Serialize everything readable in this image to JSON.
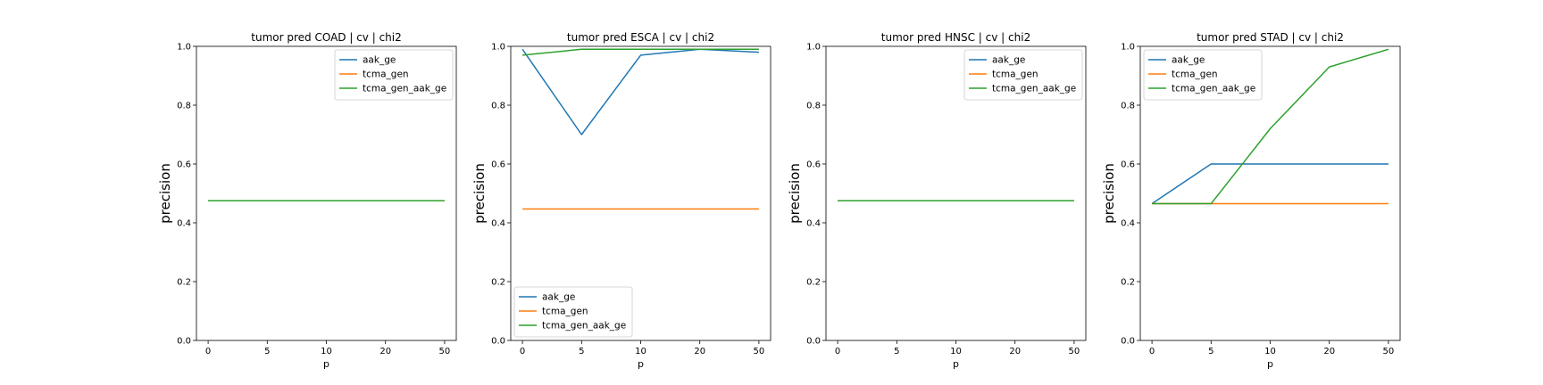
{
  "colors": {
    "aak_ge": "#1f77b4",
    "tcma_gen": "#ff7f0e",
    "tcma_gen_aak_ge": "#2ca02c"
  },
  "chart_data": [
    {
      "type": "line",
      "title": "tumor pred COAD | cv | chi2",
      "xlabel": "p",
      "ylabel": "precision",
      "ylim": [
        0.0,
        1.0
      ],
      "yticks": [
        "0.0",
        "0.2",
        "0.4",
        "0.6",
        "0.8",
        "1.0"
      ],
      "categories": [
        "0",
        "5",
        "10",
        "20",
        "50"
      ],
      "legend_position": "upper-right",
      "grid": false,
      "series": [
        {
          "name": "aak_ge",
          "color_key": "aak_ge",
          "values": [
            0.475,
            0.475,
            0.475,
            0.475,
            0.475
          ]
        },
        {
          "name": "tcma_gen",
          "color_key": "tcma_gen",
          "values": [
            0.475,
            0.475,
            0.475,
            0.475,
            0.475
          ]
        },
        {
          "name": "tcma_gen_aak_ge",
          "color_key": "tcma_gen_aak_ge",
          "values": [
            0.475,
            0.475,
            0.475,
            0.475,
            0.475
          ]
        }
      ]
    },
    {
      "type": "line",
      "title": "tumor pred ESCA | cv | chi2",
      "xlabel": "p",
      "ylabel": "precision",
      "ylim": [
        0.0,
        1.0
      ],
      "yticks": [
        "0.0",
        "0.2",
        "0.4",
        "0.6",
        "0.8",
        "1.0"
      ],
      "categories": [
        "0",
        "5",
        "10",
        "20",
        "50"
      ],
      "legend_position": "lower-left",
      "grid": false,
      "series": [
        {
          "name": "aak_ge",
          "color_key": "aak_ge",
          "values": [
            0.99,
            0.7,
            0.97,
            0.99,
            0.98
          ]
        },
        {
          "name": "tcma_gen",
          "color_key": "tcma_gen",
          "values": [
            0.447,
            0.447,
            0.447,
            0.447,
            0.447
          ]
        },
        {
          "name": "tcma_gen_aak_ge",
          "color_key": "tcma_gen_aak_ge",
          "values": [
            0.97,
            0.99,
            0.99,
            0.99,
            0.99
          ]
        }
      ]
    },
    {
      "type": "line",
      "title": "tumor pred HNSC | cv | chi2",
      "xlabel": "p",
      "ylabel": "precision",
      "ylim": [
        0.0,
        1.0
      ],
      "yticks": [
        "0.0",
        "0.2",
        "0.4",
        "0.6",
        "0.8",
        "1.0"
      ],
      "categories": [
        "0",
        "5",
        "10",
        "20",
        "50"
      ],
      "legend_position": "upper-right",
      "grid": false,
      "series": [
        {
          "name": "aak_ge",
          "color_key": "aak_ge",
          "values": [
            0.475,
            0.475,
            0.475,
            0.475,
            0.475
          ]
        },
        {
          "name": "tcma_gen",
          "color_key": "tcma_gen",
          "values": [
            0.475,
            0.475,
            0.475,
            0.475,
            0.475
          ]
        },
        {
          "name": "tcma_gen_aak_ge",
          "color_key": "tcma_gen_aak_ge",
          "values": [
            0.475,
            0.475,
            0.475,
            0.475,
            0.475
          ]
        }
      ]
    },
    {
      "type": "line",
      "title": "tumor pred STAD | cv | chi2",
      "xlabel": "p",
      "ylabel": "precision",
      "ylim": [
        0.0,
        1.0
      ],
      "yticks": [
        "0.0",
        "0.2",
        "0.4",
        "0.6",
        "0.8",
        "1.0"
      ],
      "categories": [
        "0",
        "5",
        "10",
        "20",
        "50"
      ],
      "legend_position": "upper-left",
      "grid": false,
      "series": [
        {
          "name": "aak_ge",
          "color_key": "aak_ge",
          "values": [
            0.465,
            0.6,
            0.6,
            0.6,
            0.6
          ]
        },
        {
          "name": "tcma_gen",
          "color_key": "tcma_gen",
          "values": [
            0.465,
            0.465,
            0.465,
            0.465,
            0.465
          ]
        },
        {
          "name": "tcma_gen_aak_ge",
          "color_key": "tcma_gen_aak_ge",
          "values": [
            0.465,
            0.465,
            0.72,
            0.93,
            0.99
          ]
        }
      ]
    }
  ]
}
